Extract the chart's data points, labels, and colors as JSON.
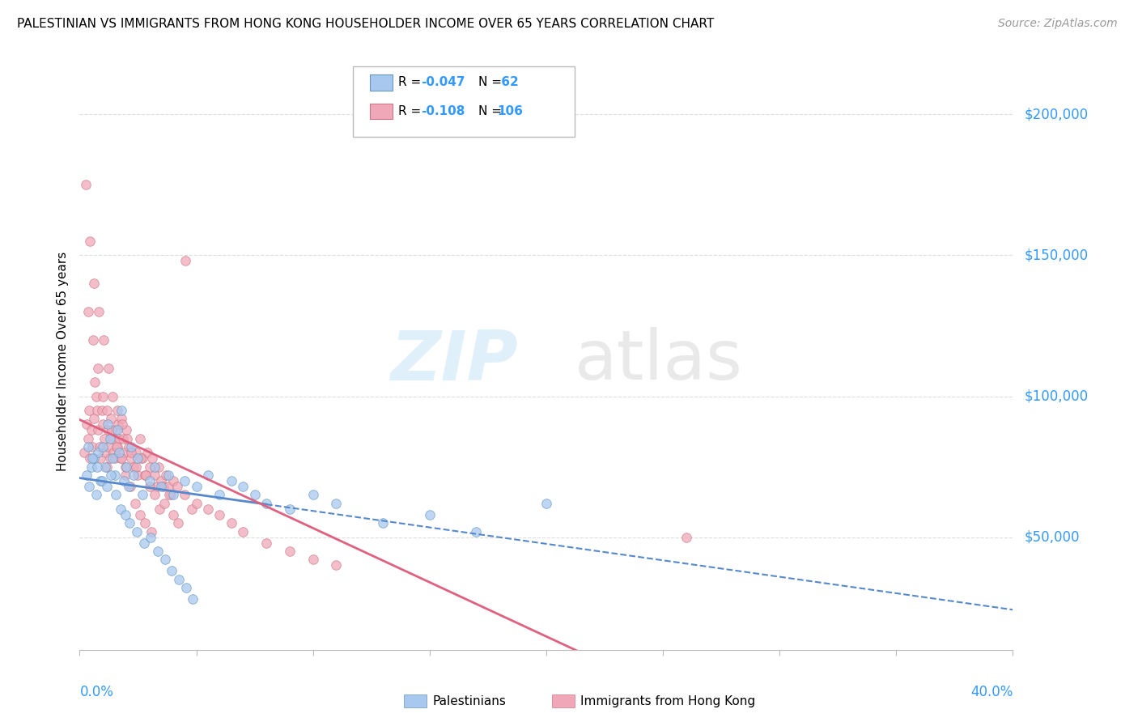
{
  "title": "PALESTINIAN VS IMMIGRANTS FROM HONG KONG HOUSEHOLDER INCOME OVER 65 YEARS CORRELATION CHART",
  "source": "Source: ZipAtlas.com",
  "ylabel": "Householder Income Over 65 years",
  "xlim_min": 0.0,
  "xlim_max": 40.0,
  "ylim_min": 10000,
  "ylim_max": 215000,
  "ytick_vals": [
    50000,
    100000,
    150000,
    200000
  ],
  "ytick_labels": [
    "$50,000",
    "$100,000",
    "$150,000",
    "$200,000"
  ],
  "axis_label_color": "#3399ff",
  "blue_color": "#a8c8f0",
  "blue_edge": "#6699bb",
  "pink_color": "#f0a8b8",
  "pink_edge": "#cc7788",
  "blue_line_color": "#5588cc",
  "pink_line_color": "#e06080",
  "grid_color": "#dddddd",
  "blue_x": [
    0.3,
    0.4,
    0.5,
    0.6,
    0.7,
    0.8,
    0.9,
    1.0,
    1.1,
    1.2,
    1.3,
    1.4,
    1.5,
    1.6,
    1.7,
    1.8,
    1.9,
    2.0,
    2.1,
    2.2,
    2.3,
    2.5,
    2.7,
    3.0,
    3.2,
    3.5,
    3.8,
    4.0,
    4.5,
    5.0,
    5.5,
    6.0,
    6.5,
    7.0,
    7.5,
    8.0,
    9.0,
    10.0,
    11.0,
    13.0,
    15.0,
    17.0,
    20.0,
    0.35,
    0.55,
    0.75,
    0.95,
    1.15,
    1.35,
    1.55,
    1.75,
    1.95,
    2.15,
    2.45,
    2.75,
    3.05,
    3.35,
    3.65,
    3.95,
    4.25,
    4.55,
    4.85
  ],
  "blue_y": [
    72000,
    68000,
    75000,
    78000,
    65000,
    80000,
    70000,
    82000,
    75000,
    90000,
    85000,
    78000,
    72000,
    88000,
    80000,
    95000,
    70000,
    75000,
    68000,
    82000,
    72000,
    78000,
    65000,
    70000,
    75000,
    68000,
    72000,
    65000,
    70000,
    68000,
    72000,
    65000,
    70000,
    68000,
    65000,
    62000,
    60000,
    65000,
    62000,
    55000,
    58000,
    52000,
    62000,
    82000,
    78000,
    75000,
    70000,
    68000,
    72000,
    65000,
    60000,
    58000,
    55000,
    52000,
    48000,
    50000,
    45000,
    42000,
    38000,
    35000,
    32000,
    28000
  ],
  "pink_x": [
    0.2,
    0.3,
    0.35,
    0.4,
    0.45,
    0.5,
    0.55,
    0.6,
    0.65,
    0.7,
    0.75,
    0.8,
    0.85,
    0.9,
    0.95,
    1.0,
    1.05,
    1.1,
    1.15,
    1.2,
    1.25,
    1.3,
    1.35,
    1.4,
    1.45,
    1.5,
    1.55,
    1.6,
    1.65,
    1.7,
    1.75,
    1.8,
    1.85,
    1.9,
    1.95,
    2.0,
    2.1,
    2.2,
    2.3,
    2.4,
    2.5,
    2.6,
    2.7,
    2.8,
    2.9,
    3.0,
    3.1,
    3.2,
    3.3,
    3.4,
    3.5,
    3.6,
    3.7,
    3.8,
    3.9,
    4.0,
    4.2,
    4.5,
    4.8,
    5.0,
    5.5,
    6.0,
    6.5,
    7.0,
    8.0,
    9.0,
    10.0,
    11.0,
    0.25,
    0.42,
    0.62,
    0.82,
    1.02,
    1.22,
    1.42,
    1.62,
    1.82,
    2.02,
    2.22,
    2.42,
    2.62,
    2.82,
    3.02,
    3.22,
    3.42,
    3.62,
    3.82,
    4.02,
    4.22,
    4.52,
    0.38,
    0.58,
    0.78,
    0.98,
    1.18,
    1.38,
    1.58,
    1.78,
    1.98,
    2.18,
    2.38,
    2.58,
    2.78,
    3.08,
    26.0
  ],
  "pink_y": [
    80000,
    90000,
    85000,
    95000,
    78000,
    88000,
    82000,
    92000,
    105000,
    100000,
    95000,
    88000,
    82000,
    78000,
    95000,
    90000,
    85000,
    80000,
    75000,
    88000,
    82000,
    78000,
    92000,
    85000,
    80000,
    78000,
    88000,
    82000,
    90000,
    85000,
    78000,
    92000,
    85000,
    80000,
    75000,
    88000,
    82000,
    78000,
    75000,
    80000,
    72000,
    85000,
    78000,
    72000,
    80000,
    75000,
    78000,
    72000,
    68000,
    75000,
    70000,
    68000,
    72000,
    68000,
    65000,
    70000,
    68000,
    65000,
    60000,
    62000,
    60000,
    58000,
    55000,
    52000,
    48000,
    45000,
    42000,
    40000,
    175000,
    155000,
    140000,
    130000,
    120000,
    110000,
    100000,
    95000,
    90000,
    85000,
    80000,
    75000,
    78000,
    72000,
    68000,
    65000,
    60000,
    62000,
    65000,
    58000,
    55000,
    148000,
    130000,
    120000,
    110000,
    100000,
    95000,
    88000,
    82000,
    78000,
    72000,
    68000,
    62000,
    58000,
    55000,
    52000,
    50000
  ]
}
